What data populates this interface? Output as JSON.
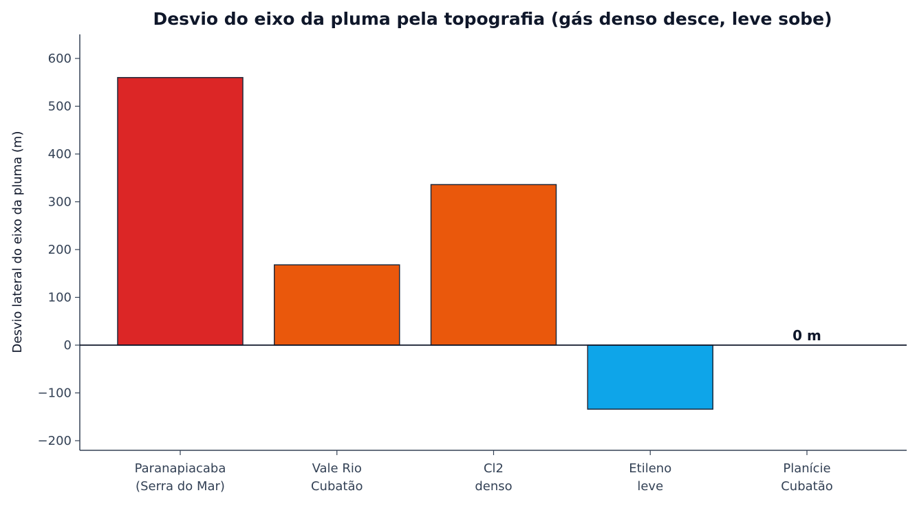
{
  "chart_data": {
    "type": "bar",
    "title": "Desvio do eixo da pluma pela topografia (gás denso desce, leve sobe)",
    "xlabel": "",
    "ylabel": "Desvio lateral do eixo da pluma (m)",
    "ylim": [
      -220,
      650
    ],
    "yticks": [
      -200,
      -100,
      0,
      100,
      200,
      300,
      400,
      500,
      600
    ],
    "ytick_labels": [
      "−200",
      "−100",
      "0",
      "100",
      "200",
      "300",
      "400",
      "500",
      "600"
    ],
    "categories": [
      [
        "Paranapiacaba",
        "(Serra do Mar)"
      ],
      [
        "Vale Rio",
        "Cubatão"
      ],
      [
        "Cl2",
        "denso"
      ],
      [
        "Etileno",
        "leve"
      ],
      [
        "Planície",
        "Cubatão"
      ]
    ],
    "values": [
      560,
      168,
      336,
      -134,
      0
    ],
    "colors": [
      "#dc2626",
      "#ea580c",
      "#ea580c",
      "#0ea5e9",
      "#ffffff"
    ],
    "value_labels": [
      "",
      "",
      "",
      "",
      "0 m"
    ],
    "grid": false,
    "legend": "none"
  }
}
